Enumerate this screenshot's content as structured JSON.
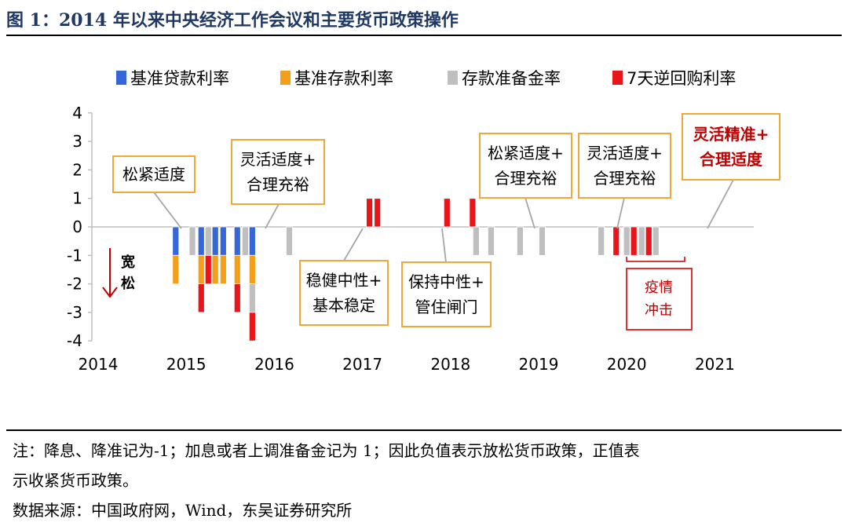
{
  "figure_title": "图 1：2014 年以来中央经济工作会议和主要货币政策操作",
  "colors": {
    "base_loan_rate": "#3567d8",
    "base_deposit_rate": "#f59e1a",
    "rrr": "#bfbfbf",
    "repo_7d": "#e8161b",
    "box_border": "#f0a83a",
    "covid_border": "#d91e1e",
    "title_color": "#1f3864"
  },
  "chart_data": {
    "type": "bar",
    "stacked": true,
    "xlim": [
      2014,
      2021.5
    ],
    "ylim": [
      -4,
      4
    ],
    "x_ticks": [
      "2014",
      "2015",
      "2016",
      "2017",
      "2018",
      "2019",
      "2020",
      "2021"
    ],
    "y_ticks": [
      "4",
      "3",
      "2",
      "1",
      "0",
      "-1",
      "-2",
      "-3",
      "-4"
    ],
    "legend_position": "top",
    "series": [
      {
        "name": "基准贷款利率",
        "color_key": "base_loan_rate"
      },
      {
        "name": "基准存款利率",
        "color_key": "base_deposit_rate"
      },
      {
        "name": "存款准备金率",
        "color_key": "rrr"
      },
      {
        "name": "7天逆回购利率",
        "color_key": "repo_7d"
      }
    ],
    "events": [
      {
        "x": 2014.88,
        "segs": [
          [
            "base_loan_rate",
            -1
          ],
          [
            "base_deposit_rate",
            -1
          ]
        ]
      },
      {
        "x": 2015.07,
        "segs": [
          [
            "rrr",
            -1
          ]
        ]
      },
      {
        "x": 2015.17,
        "segs": [
          [
            "base_loan_rate",
            -1
          ],
          [
            "base_deposit_rate",
            -1
          ],
          [
            "repo_7d",
            -1
          ]
        ]
      },
      {
        "x": 2015.25,
        "segs": [
          [
            "rrr",
            -1
          ],
          [
            "repo_7d",
            -1
          ]
        ]
      },
      {
        "x": 2015.33,
        "segs": [
          [
            "base_loan_rate",
            -1
          ],
          [
            "base_deposit_rate",
            -1
          ]
        ]
      },
      {
        "x": 2015.42,
        "segs": [
          [
            "base_loan_rate",
            -1
          ],
          [
            "base_deposit_rate",
            -1
          ]
        ]
      },
      {
        "x": 2015.58,
        "segs": [
          [
            "base_loan_rate",
            -1
          ],
          [
            "base_deposit_rate",
            -1
          ],
          [
            "repo_7d",
            -1
          ]
        ]
      },
      {
        "x": 2015.67,
        "segs": [
          [
            "rrr",
            -1
          ]
        ]
      },
      {
        "x": 2015.75,
        "segs": [
          [
            "base_loan_rate",
            -1
          ],
          [
            "base_deposit_rate",
            -1
          ],
          [
            "rrr",
            -1
          ],
          [
            "repo_7d",
            -1
          ]
        ]
      },
      {
        "x": 2016.17,
        "segs": [
          [
            "rrr",
            -1
          ]
        ]
      },
      {
        "x": 2017.08,
        "segs": [
          [
            "repo_7d",
            1
          ]
        ]
      },
      {
        "x": 2017.17,
        "segs": [
          [
            "repo_7d",
            1
          ]
        ]
      },
      {
        "x": 2017.96,
        "segs": [
          [
            "repo_7d",
            1
          ]
        ]
      },
      {
        "x": 2018.25,
        "segs": [
          [
            "repo_7d",
            1
          ]
        ]
      },
      {
        "x": 2018.29,
        "segs": [
          [
            "rrr",
            -1
          ]
        ]
      },
      {
        "x": 2018.46,
        "segs": [
          [
            "rrr",
            -1
          ]
        ]
      },
      {
        "x": 2018.79,
        "segs": [
          [
            "rrr",
            -1
          ]
        ]
      },
      {
        "x": 2019.04,
        "segs": [
          [
            "rrr",
            -1
          ]
        ]
      },
      {
        "x": 2019.71,
        "segs": [
          [
            "rrr",
            -1
          ]
        ]
      },
      {
        "x": 2019.88,
        "segs": [
          [
            "repo_7d",
            -1
          ]
        ]
      },
      {
        "x": 2020.0,
        "segs": [
          [
            "rrr",
            -1
          ]
        ]
      },
      {
        "x": 2020.08,
        "segs": [
          [
            "repo_7d",
            -1
          ]
        ]
      },
      {
        "x": 2020.17,
        "segs": [
          [
            "rrr",
            -1
          ]
        ]
      },
      {
        "x": 2020.25,
        "segs": [
          [
            "repo_7d",
            -1
          ]
        ]
      },
      {
        "x": 2020.33,
        "segs": [
          [
            "rrr",
            -1
          ]
        ]
      }
    ],
    "annotations": [
      {
        "lines": [
          "松紧适度"
        ],
        "tx": 2015.0
      },
      {
        "lines": [
          "灵活适度+",
          "合理充裕"
        ],
        "tx": 2016.0
      },
      {
        "lines": [
          "稳健中性+",
          "基本稳定"
        ],
        "tx": 2017.0
      },
      {
        "lines": [
          "保持中性+",
          "管住闸门"
        ],
        "tx": 2018.0
      },
      {
        "lines": [
          "松紧适度+",
          "合理充裕"
        ],
        "tx": 2019.0
      },
      {
        "lines": [
          "灵活适度+",
          "合理充裕"
        ],
        "tx": 2020.0
      },
      {
        "lines": [
          "灵活精准+",
          "合理适度"
        ],
        "tx": 2021.0,
        "highlight": true
      }
    ],
    "easing_label": [
      "宽",
      "松"
    ],
    "covid_label": [
      "疫情",
      "冲击"
    ]
  },
  "footer": {
    "note_line1": "注：降息、降准记为-1；加息或者上调准备金记为 1；因此负值表示放松货币政策，正值表",
    "note_line2": "示收紧货币政策。",
    "source": "数据来源：中国政府网，Wind，东吴证券研究所"
  }
}
